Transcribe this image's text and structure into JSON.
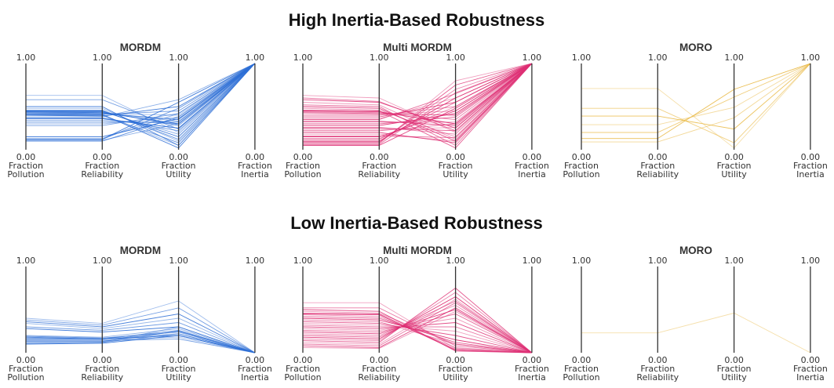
{
  "sections": [
    {
      "title": "High Inertia-Based Robustness"
    },
    {
      "title": "Low Inertia-Based Robustness"
    }
  ],
  "axis_labels": [
    [
      "Fraction",
      "Pollution"
    ],
    [
      "Fraction",
      "Reliability"
    ],
    [
      "Fraction",
      "Utility"
    ],
    [
      "Fraction",
      "Inertia"
    ]
  ],
  "tick_top": "1.00",
  "tick_bottom": "0.00",
  "colors": {
    "MORDM": "#2e6fd6",
    "Multi MORDM": "#de2f74",
    "MORO": "#e9b842"
  },
  "chart_data": [
    {
      "type": "parallel_coordinates",
      "section": "High Inertia-Based Robustness",
      "title": "MORDM",
      "axes": [
        "Fraction Pollution",
        "Fraction Reliability",
        "Fraction Utility",
        "Fraction Inertia"
      ],
      "ylim": [
        0,
        1
      ],
      "series": [
        [
          0.63,
          0.63,
          0.2,
          1
        ],
        [
          0.58,
          0.58,
          0.24,
          1
        ],
        [
          0.5,
          0.5,
          0.05,
          1
        ],
        [
          0.48,
          0.48,
          0.1,
          1
        ],
        [
          0.46,
          0.46,
          0.12,
          1
        ],
        [
          0.45,
          0.45,
          0.15,
          1
        ],
        [
          0.45,
          0.44,
          0.18,
          1
        ],
        [
          0.44,
          0.44,
          0.28,
          1
        ],
        [
          0.44,
          0.43,
          0.3,
          1
        ],
        [
          0.43,
          0.43,
          0.33,
          1
        ],
        [
          0.43,
          0.42,
          0.35,
          1
        ],
        [
          0.42,
          0.42,
          0.4,
          1
        ],
        [
          0.42,
          0.41,
          0.45,
          1
        ],
        [
          0.41,
          0.41,
          0.02,
          1
        ],
        [
          0.41,
          0.4,
          0.05,
          1
        ],
        [
          0.4,
          0.4,
          0.08,
          1
        ],
        [
          0.4,
          0.39,
          0.5,
          1
        ],
        [
          0.38,
          0.38,
          0.58,
          1
        ],
        [
          0.37,
          0.37,
          0.22,
          1
        ],
        [
          0.36,
          0.36,
          0.25,
          1
        ],
        [
          0.34,
          0.34,
          0.3,
          1
        ],
        [
          0.32,
          0.32,
          0.32,
          1
        ],
        [
          0.3,
          0.3,
          0.38,
          1
        ],
        [
          0.28,
          0.28,
          0.42,
          1
        ],
        [
          0.15,
          0.15,
          0.36,
          1
        ],
        [
          0.13,
          0.13,
          0.42,
          1
        ],
        [
          0.12,
          0.12,
          0.48,
          1
        ],
        [
          0.12,
          0.12,
          0.55,
          1
        ],
        [
          0.11,
          0.11,
          0.3,
          1
        ],
        [
          0.1,
          0.1,
          0.38,
          1
        ]
      ]
    },
    {
      "type": "parallel_coordinates",
      "section": "High Inertia-Based Robustness",
      "title": "Multi MORDM",
      "axes": [
        "Fraction Pollution",
        "Fraction Reliability",
        "Fraction Utility",
        "Fraction Inertia"
      ],
      "ylim": [
        0,
        1
      ],
      "series": [
        [
          0.63,
          0.6,
          0.2,
          1
        ],
        [
          0.6,
          0.56,
          0.22,
          1
        ],
        [
          0.58,
          0.55,
          0.25,
          1
        ],
        [
          0.55,
          0.52,
          0.12,
          1
        ],
        [
          0.52,
          0.5,
          0.05,
          1
        ],
        [
          0.5,
          0.48,
          0.1,
          1
        ],
        [
          0.48,
          0.46,
          0.15,
          1
        ],
        [
          0.46,
          0.45,
          0.02,
          1
        ],
        [
          0.45,
          0.44,
          0.3,
          1
        ],
        [
          0.44,
          0.43,
          0.35,
          1
        ],
        [
          0.43,
          0.42,
          0.4,
          1
        ],
        [
          0.42,
          0.41,
          0.45,
          1
        ],
        [
          0.4,
          0.4,
          0.5,
          1
        ],
        [
          0.38,
          0.38,
          0.55,
          1
        ],
        [
          0.36,
          0.36,
          0.6,
          1
        ],
        [
          0.35,
          0.35,
          0.65,
          1
        ],
        [
          0.33,
          0.33,
          0.28,
          1
        ],
        [
          0.32,
          0.32,
          0.32,
          1
        ],
        [
          0.3,
          0.3,
          0.38,
          1
        ],
        [
          0.28,
          0.28,
          0.42,
          1
        ],
        [
          0.26,
          0.26,
          0.18,
          1
        ],
        [
          0.25,
          0.25,
          0.22,
          1
        ],
        [
          0.23,
          0.23,
          0.26,
          1
        ],
        [
          0.22,
          0.22,
          0.3,
          1
        ],
        [
          0.2,
          0.2,
          0.08,
          1
        ],
        [
          0.18,
          0.18,
          0.1,
          1
        ],
        [
          0.16,
          0.16,
          0.14,
          1
        ],
        [
          0.15,
          0.15,
          0.45,
          1
        ],
        [
          0.13,
          0.13,
          0.5,
          1
        ],
        [
          0.12,
          0.12,
          0.55,
          1
        ],
        [
          0.1,
          0.1,
          0.6,
          1
        ],
        [
          0.09,
          0.09,
          0.7,
          1
        ],
        [
          0.08,
          0.08,
          0.75,
          1
        ],
        [
          0.07,
          0.07,
          0.8,
          1
        ],
        [
          0.06,
          0.06,
          0.66,
          1
        ],
        [
          0.05,
          0.05,
          0.48,
          1
        ]
      ]
    },
    {
      "type": "parallel_coordinates",
      "section": "High Inertia-Based Robustness",
      "title": "MORO",
      "axes": [
        "Fraction Pollution",
        "Fraction Reliability",
        "Fraction Utility",
        "Fraction Inertia"
      ],
      "ylim": [
        0,
        1
      ],
      "series": [
        [
          0.71,
          0.71,
          0.02,
          1
        ],
        [
          0.48,
          0.48,
          0.08,
          1
        ],
        [
          0.39,
          0.39,
          0.24,
          1
        ],
        [
          0.29,
          0.29,
          0.49,
          1
        ],
        [
          0.2,
          0.2,
          0.61,
          1
        ],
        [
          0.13,
          0.13,
          0.7,
          1
        ],
        [
          0.09,
          0.09,
          0.37,
          1
        ]
      ]
    },
    {
      "type": "parallel_coordinates",
      "section": "Low Inertia-Based Robustness",
      "title": "MORDM",
      "axes": [
        "Fraction Pollution",
        "Fraction Reliability",
        "Fraction Utility",
        "Fraction Inertia"
      ],
      "ylim": [
        0,
        1
      ],
      "series": [
        [
          0.4,
          0.34,
          0.6,
          0
        ],
        [
          0.38,
          0.32,
          0.52,
          0
        ],
        [
          0.36,
          0.3,
          0.45,
          0
        ],
        [
          0.34,
          0.28,
          0.4,
          0
        ],
        [
          0.3,
          0.26,
          0.35,
          0
        ],
        [
          0.28,
          0.24,
          0.3,
          0
        ],
        [
          0.2,
          0.18,
          0.28,
          0
        ],
        [
          0.19,
          0.17,
          0.24,
          0
        ],
        [
          0.18,
          0.16,
          0.2,
          0
        ],
        [
          0.17,
          0.16,
          0.22,
          0
        ],
        [
          0.16,
          0.16,
          0.26,
          0
        ],
        [
          0.15,
          0.15,
          0.18,
          0
        ],
        [
          0.14,
          0.14,
          0.16,
          0
        ],
        [
          0.13,
          0.13,
          0.25,
          0
        ],
        [
          0.12,
          0.12,
          0.3,
          0
        ],
        [
          0.11,
          0.12,
          0.22,
          0
        ],
        [
          0.1,
          0.11,
          0.2,
          0
        ]
      ]
    },
    {
      "type": "parallel_coordinates",
      "section": "Low Inertia-Based Robustness",
      "title": "Multi MORDM",
      "axes": [
        "Fraction Pollution",
        "Fraction Reliability",
        "Fraction Utility",
        "Fraction Inertia"
      ],
      "ylim": [
        0,
        1
      ],
      "series": [
        [
          0.58,
          0.58,
          0.05,
          0
        ],
        [
          0.52,
          0.52,
          0.08,
          0
        ],
        [
          0.5,
          0.48,
          0.02,
          0
        ],
        [
          0.48,
          0.46,
          0.1,
          0
        ],
        [
          0.46,
          0.45,
          0.04,
          0
        ],
        [
          0.45,
          0.44,
          0.03,
          0
        ],
        [
          0.44,
          0.42,
          0.06,
          0
        ],
        [
          0.42,
          0.4,
          0.12,
          0
        ],
        [
          0.4,
          0.38,
          0.15,
          0
        ],
        [
          0.38,
          0.36,
          0.1,
          0
        ],
        [
          0.36,
          0.34,
          0.2,
          0
        ],
        [
          0.34,
          0.32,
          0.25,
          0
        ],
        [
          0.32,
          0.3,
          0.3,
          0
        ],
        [
          0.3,
          0.28,
          0.35,
          0
        ],
        [
          0.28,
          0.26,
          0.4,
          0
        ],
        [
          0.26,
          0.24,
          0.45,
          0
        ],
        [
          0.24,
          0.22,
          0.5,
          0
        ],
        [
          0.22,
          0.2,
          0.55,
          0
        ],
        [
          0.2,
          0.18,
          0.6,
          0
        ],
        [
          0.18,
          0.16,
          0.65,
          0
        ],
        [
          0.16,
          0.14,
          0.7,
          0
        ],
        [
          0.14,
          0.12,
          0.75,
          0
        ],
        [
          0.12,
          0.1,
          0.62,
          0
        ],
        [
          0.1,
          0.08,
          0.58,
          0
        ],
        [
          0.08,
          0.06,
          0.52,
          0
        ],
        [
          0.06,
          0.05,
          0.48,
          0
        ]
      ]
    },
    {
      "type": "parallel_coordinates",
      "section": "Low Inertia-Based Robustness",
      "title": "MORO",
      "axes": [
        "Fraction Pollution",
        "Fraction Reliability",
        "Fraction Utility",
        "Fraction Inertia"
      ],
      "ylim": [
        0,
        1
      ],
      "series": [
        [
          0.23,
          0.23,
          0.46,
          0
        ]
      ]
    }
  ]
}
